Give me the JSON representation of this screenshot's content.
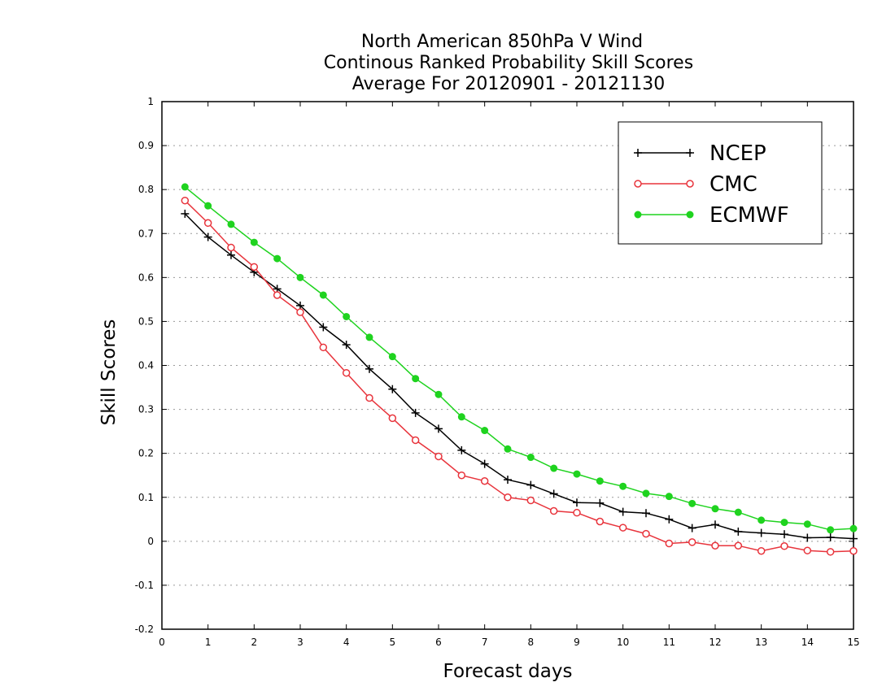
{
  "chart_data": {
    "type": "line",
    "title": [
      "North American 850hPa V Wind",
      "Continous Ranked Probability Skill Scores",
      "Average For 20120901 - 20121130"
    ],
    "xlabel": "Forecast days",
    "ylabel": "Skill Scores",
    "xlim": [
      0,
      15
    ],
    "ylim": [
      -0.2,
      1
    ],
    "x_ticks": [
      "0",
      "1",
      "2",
      "3",
      "4",
      "5",
      "6",
      "7",
      "8",
      "9",
      "10",
      "11",
      "12",
      "13",
      "14",
      "15"
    ],
    "y_ticks": [
      "-0.2",
      "-0.1",
      "0",
      "0.1",
      "0.2",
      "0.3",
      "0.4",
      "0.5",
      "0.6",
      "0.7",
      "0.8",
      "0.9",
      "1"
    ],
    "grid": "horizontal dotted",
    "legend_position": "top-right",
    "x": [
      0.5,
      1,
      1.5,
      2,
      2.5,
      3,
      3.5,
      4,
      4.5,
      5,
      5.5,
      6,
      6.5,
      7,
      7.5,
      8,
      8.5,
      9,
      9.5,
      10,
      10.5,
      11,
      11.5,
      12,
      12.5,
      13,
      13.5,
      14,
      14.5,
      15
    ],
    "series": [
      {
        "name": "NCEP",
        "color": "#000000",
        "marker": "plus",
        "values": [
          0.745,
          0.692,
          0.651,
          0.612,
          0.574,
          0.536,
          0.487,
          0.447,
          0.392,
          0.346,
          0.292,
          0.256,
          0.207,
          0.176,
          0.14,
          0.128,
          0.108,
          0.088,
          0.087,
          0.067,
          0.064,
          0.05,
          0.03,
          0.038,
          0.022,
          0.019,
          0.016,
          0.008,
          0.009,
          0.006
        ]
      },
      {
        "name": "CMC",
        "color": "#e8343c",
        "marker": "open-circle",
        "values": [
          0.775,
          0.724,
          0.668,
          0.624,
          0.56,
          0.521,
          0.441,
          0.383,
          0.326,
          0.28,
          0.23,
          0.193,
          0.15,
          0.137,
          0.1,
          0.093,
          0.069,
          0.065,
          0.045,
          0.031,
          0.017,
          -0.005,
          -0.002,
          -0.01,
          -0.01,
          -0.022,
          -0.011,
          -0.021,
          -0.024,
          -0.022
        ]
      },
      {
        "name": "ECMWF",
        "color": "#1fd31f",
        "marker": "filled-circle",
        "values": [
          0.806,
          0.763,
          0.721,
          0.68,
          0.643,
          0.6,
          0.56,
          0.511,
          0.464,
          0.42,
          0.37,
          0.334,
          0.283,
          0.252,
          0.21,
          0.191,
          0.166,
          0.153,
          0.137,
          0.125,
          0.109,
          0.102,
          0.086,
          0.074,
          0.066,
          0.048,
          0.043,
          0.039,
          0.026,
          0.029
        ]
      }
    ]
  }
}
